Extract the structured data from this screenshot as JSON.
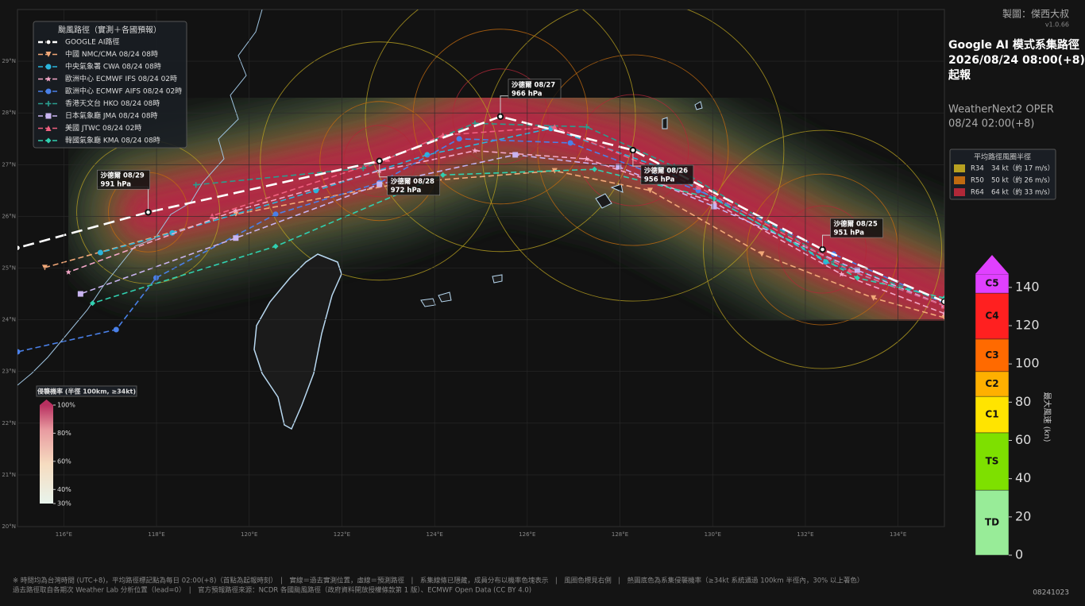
{
  "header": {
    "credit": "製圖：傑西大叔",
    "version": "v1.0.66",
    "title": [
      "Google AI 模式系集路徑",
      "2026/08/24 08:00(+8)",
      "起報"
    ],
    "model": "WeatherNext2 OPER",
    "model_time": "08/24 02:00(+8)"
  },
  "map": {
    "xlim": [
      115,
      135
    ],
    "ylim": [
      20,
      30
    ],
    "xticks": [
      {
        "value": 116,
        "label": "116°E"
      },
      {
        "value": 118,
        "label": "118°E"
      },
      {
        "value": 120,
        "label": "120°E"
      },
      {
        "value": 122,
        "label": "122°E"
      },
      {
        "value": 124,
        "label": "124°E"
      },
      {
        "value": 126,
        "label": "126°E"
      },
      {
        "value": 128,
        "label": "128°E"
      },
      {
        "value": 130,
        "label": "130°E"
      },
      {
        "value": 132,
        "label": "132°E"
      },
      {
        "value": 134,
        "label": "134°E"
      }
    ],
    "yticks": [
      {
        "value": 20,
        "label": "20°N"
      },
      {
        "value": 21,
        "label": "21°N"
      },
      {
        "value": 22,
        "label": "22°N"
      },
      {
        "value": 23,
        "label": "23°N"
      },
      {
        "value": 24,
        "label": "24°N"
      },
      {
        "value": 25,
        "label": "25°N"
      },
      {
        "value": 26,
        "label": "26°N"
      },
      {
        "value": 27,
        "label": "27°N"
      },
      {
        "value": 28,
        "label": "28°N"
      },
      {
        "value": 29,
        "label": "29°N"
      }
    ]
  },
  "track_legend": {
    "title": "颱風路徑（實測＋各國預報）",
    "series": [
      {
        "name": "GOOGLE AI路徑",
        "color": "#ffffff",
        "marker": "circle",
        "lon": [
          135,
          132.37,
          128.28,
          125.42,
          122.81,
          117.82,
          115
        ],
        "lat": [
          24.35,
          25.36,
          27.28,
          27.93,
          27.07,
          26.08,
          25.39
        ]
      },
      {
        "name": "中國 NMC/CMA  08/24 08時",
        "color": "#f2a878",
        "marker": "triangle-down",
        "lon": [
          135,
          133.47,
          131.06,
          128.65,
          126.59,
          123.32,
          119.71,
          115.59
        ],
        "lat": [
          24.04,
          24.42,
          25.27,
          26.5,
          26.88,
          26.65,
          26.04,
          25.01
        ]
      },
      {
        "name": "中央氣象署 CWA  08/24 08時",
        "color": "#2bb5dc",
        "marker": "circle",
        "lon": [
          135,
          132.44,
          128.83,
          126.51,
          123.84,
          121.44,
          118.34,
          116.79
        ],
        "lat": [
          24.27,
          25.12,
          26.96,
          27.7,
          27.19,
          26.5,
          25.68,
          25.3
        ]
      },
      {
        "name": "歐洲中心 ECMWF IFS  08/24 02時",
        "color": "#f4a8c8",
        "marker": "star",
        "lon": [
          135,
          132.78,
          130.03,
          127.28,
          124.87,
          122.81,
          119.71,
          116.1
        ],
        "lat": [
          24.12,
          24.88,
          26.27,
          27.11,
          27.27,
          26.88,
          26.11,
          24.92
        ]
      },
      {
        "name": "歐洲中心 ECMWF AIFS  08/24 02時",
        "color": "#4a80e8",
        "marker": "circle",
        "lon": [
          135,
          132.61,
          129.69,
          126.93,
          124.53,
          122.81,
          120.57,
          117.99,
          117.13,
          115
        ],
        "lat": [
          24.32,
          25.27,
          26.5,
          27.42,
          27.5,
          26.65,
          26.04,
          24.81,
          23.81,
          23.38
        ]
      },
      {
        "name": "香港天文台 HKO  08/24 08時",
        "color": "#2a9d8f",
        "marker": "plus",
        "lon": [
          135,
          132.61,
          129.17,
          127.28,
          124.87,
          122.46,
          118.85
        ],
        "lat": [
          24.35,
          25.12,
          26.96,
          27.73,
          27.8,
          26.93,
          26.61
        ]
      },
      {
        "name": "日本氣象廳 JMA  08/24 08時",
        "color": "#c8b4f0",
        "marker": "square",
        "lon": [
          135,
          133.12,
          130.03,
          127.97,
          125.74,
          122.81,
          119.71,
          116.36
        ],
        "lat": [
          24.27,
          24.96,
          26.19,
          26.96,
          27.19,
          26.62,
          25.58,
          24.5
        ]
      },
      {
        "name": "美國 JTWC  08/24 02時",
        "color": "#f06080",
        "marker": "triangle",
        "lon": [
          135,
          132.95,
          129.69,
          126.59,
          124.18,
          122.98,
          119.2
        ],
        "lat": [
          24.27,
          24.96,
          26.57,
          27.73,
          27.57,
          27.11,
          26.01
        ]
      },
      {
        "name": "韓國氣象廳 KMA  08/24 08時",
        "color": "#30d0b0",
        "marker": "diamond",
        "lon": [
          135,
          133.12,
          130.03,
          127.45,
          124.18,
          120.57,
          116.62
        ],
        "lat": [
          24.42,
          24.81,
          26.34,
          26.91,
          26.8,
          25.42,
          24.32
        ]
      }
    ]
  },
  "storm_labels": [
    {
      "text": "沙德爾 08/25",
      "pressure": "951 hPa",
      "lon": 132.37,
      "lat": 25.36
    },
    {
      "text": "沙德爾 08/26",
      "pressure": "956 hPa",
      "lon": 128.28,
      "lat": 27.28
    },
    {
      "text": "沙德爾 08/27",
      "pressure": "966 hPa",
      "lon": 125.42,
      "lat": 27.93
    },
    {
      "text": "沙德爾 08/28",
      "pressure": "972 hPa",
      "lon": 122.81,
      "lat": 27.07
    },
    {
      "text": "沙德爾 08/29",
      "pressure": "991 hPa",
      "lon": 117.82,
      "lat": 26.08
    }
  ],
  "radius_legend": {
    "title": "平均路徑風圈半徑",
    "items": [
      {
        "name": "R34",
        "desc": "34 kt（約 17 m/s）",
        "color": "#b8a020"
      },
      {
        "name": "R50",
        "desc": "50 kt（約 26 m/s）",
        "color": "#c06a10"
      },
      {
        "name": "R64",
        "desc": "64 kt（約 33 m/s）",
        "color": "#b02838"
      }
    ]
  },
  "intensity_scale": {
    "axis_label": "最大風速 (kn)",
    "ylim": [
      0,
      147
    ],
    "yticks": [
      0,
      20,
      40,
      60,
      80,
      100,
      120,
      140
    ],
    "categories": [
      {
        "name": "TD",
        "min": 0,
        "max": 34,
        "color": "#98ec98"
      },
      {
        "name": "TS",
        "min": 34,
        "max": 64,
        "color": "#7ee000"
      },
      {
        "name": "C1",
        "min": 64,
        "max": 83,
        "color": "#ffe400"
      },
      {
        "name": "C2",
        "min": 83,
        "max": 96,
        "color": "#ffb000"
      },
      {
        "name": "C3",
        "min": 96,
        "max": 113,
        "color": "#ff6a00"
      },
      {
        "name": "C4",
        "min": 113,
        "max": 137,
        "color": "#ff2020"
      },
      {
        "name": "C5",
        "min": 137,
        "max": 147,
        "color": "#e040ff"
      }
    ]
  },
  "probability_legend": {
    "title": "侵襲機率 (半徑 100km, ≥34kt)",
    "ylim": [
      30,
      100
    ],
    "yticks": [
      {
        "value": 100,
        "label": "100%"
      },
      {
        "value": 80,
        "label": "80%"
      },
      {
        "value": 60,
        "label": "60%"
      },
      {
        "value": 40,
        "label": "40%"
      },
      {
        "value": 30,
        "label": "30%"
      }
    ]
  },
  "footer": [
    "※ 時間均為台灣時間 (UTC+8)，平均路徑標記點為每日 02:00(+8)（首點為起報時刻）　|　實線＝過去實測位置，虛線＝預測路徑　|　系集線條已隱藏，成員分布以機率色塊表示　|　風圈色標見右側　|　熱圖底色為系集侵襲機率（≥34kt 系統通過 100km 半徑內，30% 以上著色）",
    "過去路徑取自各期次 Weather Lab 分析位置（lead=0）　|　官方預報路徑來源：NCDR 各國颱風路徑（政府資料開放授權條款第 1 版）、ECMWF Open Data (CC BY 4.0)"
  ],
  "stamp": "08241023"
}
